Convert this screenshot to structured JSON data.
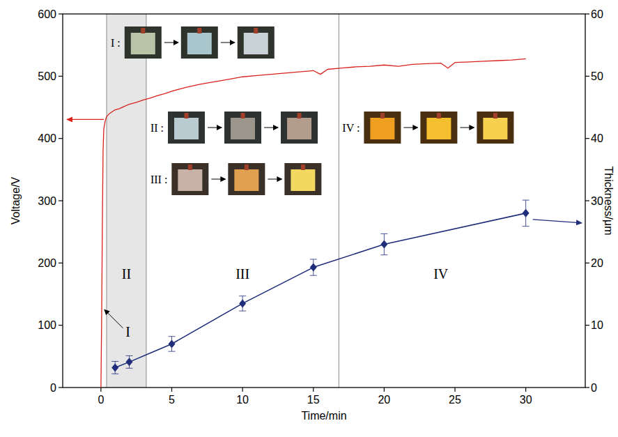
{
  "chart_data": {
    "type": "line",
    "x_label": "Time/min",
    "y_label": "Voltage/V",
    "y2_label": "Thickness/μm",
    "xlim": [
      -2.7,
      34.2
    ],
    "xticks": [
      0,
      5,
      10,
      15,
      20,
      25,
      30
    ],
    "ylim": [
      0,
      600
    ],
    "yticks": [
      0,
      100,
      200,
      300,
      400,
      500,
      600
    ],
    "y2lim": [
      0,
      60
    ],
    "y2ticks": [
      0,
      10,
      20,
      30,
      40,
      50,
      60
    ],
    "grid": false,
    "series": [
      {
        "type": "line",
        "color": "#d9211c",
        "axis": "y",
        "x": [
          0,
          0.05,
          0.1,
          0.15,
          0.2,
          0.3,
          0.4,
          0.6,
          0.8,
          1,
          1.3,
          1.6,
          2,
          2.5,
          3,
          3.5,
          4,
          4.5,
          5,
          5.5,
          6,
          7,
          8,
          9,
          10,
          11,
          12,
          13,
          14,
          15,
          15.5,
          16,
          17,
          18,
          19,
          20,
          21,
          22,
          23,
          24,
          24.5,
          25,
          26,
          27,
          28,
          29,
          30
        ],
        "values": [
          0,
          110,
          260,
          380,
          415,
          428,
          435,
          440,
          443,
          446,
          448,
          451,
          455,
          458,
          462,
          465,
          469,
          472,
          476,
          479,
          482,
          487,
          491,
          495,
          499,
          501,
          503,
          505,
          507,
          509,
          503,
          511,
          513,
          515,
          516,
          518,
          516,
          519,
          520,
          521,
          513,
          522,
          523,
          524,
          525,
          526,
          528
        ]
      },
      {
        "type": "line",
        "color": "#1f2d7a",
        "axis": "y2",
        "marker": "diamond",
        "x": [
          1,
          2,
          5,
          10,
          15,
          20,
          30
        ],
        "values": [
          3.2,
          4.1,
          7.0,
          13.5,
          19.3,
          23.0,
          28.0
        ],
        "errors": [
          1.0,
          1.0,
          1.2,
          1.2,
          1.3,
          1.7,
          2.1
        ]
      }
    ],
    "phases": {
      "boundaries": [
        0.4,
        3.2,
        16.8
      ],
      "labels": [
        {
          "text": "I",
          "x": 1.9,
          "y": 82,
          "arrow_x": 0.25,
          "arrow_y": 125
        },
        {
          "text": "II",
          "x": 1.8,
          "y": 175
        },
        {
          "text": "III",
          "x": 10,
          "y": 175
        },
        {
          "text": "IV",
          "x": 24,
          "y": 175
        }
      ]
    },
    "insets": [
      {
        "label": "I :"
      },
      {
        "label": "II :"
      },
      {
        "label": "III :"
      },
      {
        "label": "IV :"
      }
    ]
  }
}
